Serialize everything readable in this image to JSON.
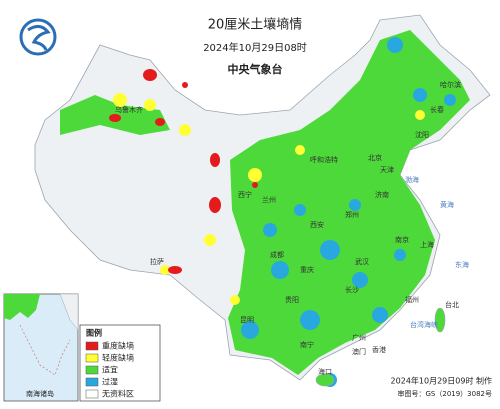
{
  "header": {
    "title": "20厘米土壤墒情",
    "time": "2024年10月29日08时",
    "issuer": "中央气象台"
  },
  "legend": {
    "title": "图例",
    "items": [
      {
        "label": "重度缺墒",
        "color": "#e41a1c"
      },
      {
        "label": "轻度缺墒",
        "color": "#ffff33"
      },
      {
        "label": "适宜",
        "color": "#4dd93a"
      },
      {
        "label": "过湿",
        "color": "#29a8e0"
      },
      {
        "label": "无资料区",
        "color": "#ffffff"
      }
    ]
  },
  "inset": {
    "label": "南海诸岛"
  },
  "footer": {
    "made": "2024年10月29日09时 制作",
    "approval": "审图号：GS（2019）3082号"
  },
  "map": {
    "labels": [
      "北京",
      "天津",
      "上海",
      "南京",
      "武汉",
      "长沙",
      "广州",
      "香港",
      "澳门",
      "台北",
      "福州",
      "重庆",
      "成都",
      "西安",
      "郑州",
      "济南",
      "沈阳",
      "长春",
      "哈尔滨",
      "乌鲁木齐",
      "拉萨",
      "昆明",
      "南宁",
      "海口",
      "兰州",
      "西宁",
      "呼和浩特",
      "贵阳"
    ],
    "seas": [
      "渤海",
      "黄海",
      "东海",
      "台湾海峡"
    ]
  }
}
